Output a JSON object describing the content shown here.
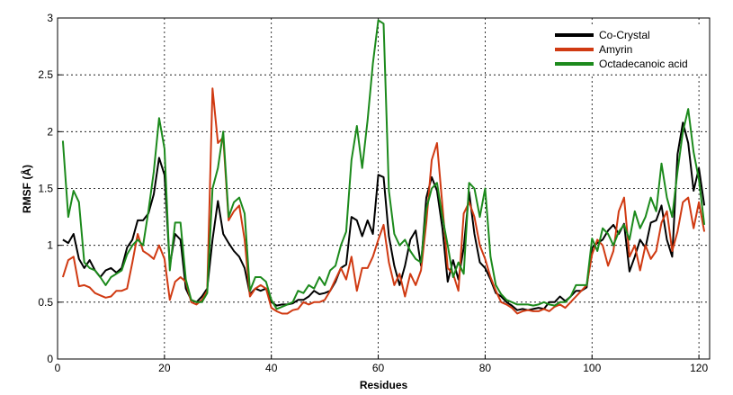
{
  "chart_data": {
    "type": "line",
    "xlabel": "Residues",
    "ylabel": "RMSF (Å)",
    "xlim": [
      0,
      122
    ],
    "ylim": [
      0,
      3
    ],
    "xticks": [
      0,
      20,
      40,
      60,
      80,
      100,
      120
    ],
    "yticks": [
      0,
      0.5,
      1,
      1.5,
      2,
      2.5,
      3
    ],
    "xtick_labels": [
      "0",
      "20",
      "40",
      "60",
      "80",
      "100",
      "120"
    ],
    "ytick_labels": [
      "0",
      "0.5",
      "1",
      "1.5",
      "2",
      "2.5",
      "3"
    ],
    "grid": true,
    "legend_position": "top-right",
    "x": [
      1,
      2,
      3,
      4,
      5,
      6,
      7,
      8,
      9,
      10,
      11,
      12,
      13,
      14,
      15,
      16,
      17,
      18,
      19,
      20,
      21,
      22,
      23,
      24,
      25,
      26,
      27,
      28,
      29,
      30,
      31,
      32,
      33,
      34,
      35,
      36,
      37,
      38,
      39,
      40,
      41,
      42,
      43,
      44,
      45,
      46,
      47,
      48,
      49,
      50,
      51,
      52,
      53,
      54,
      55,
      56,
      57,
      58,
      59,
      60,
      61,
      62,
      63,
      64,
      65,
      66,
      67,
      68,
      69,
      70,
      71,
      72,
      73,
      74,
      75,
      76,
      77,
      78,
      79,
      80,
      81,
      82,
      83,
      84,
      85,
      86,
      87,
      88,
      89,
      90,
      91,
      92,
      93,
      94,
      95,
      96,
      97,
      98,
      99,
      100,
      101,
      102,
      103,
      104,
      105,
      106,
      107,
      108,
      109,
      110,
      111,
      112,
      113,
      114,
      115,
      116,
      117,
      118,
      119,
      120,
      121
    ],
    "series": [
      {
        "name": "Co-Crystal",
        "color": "#000000",
        "values": [
          1.05,
          1.02,
          1.1,
          0.88,
          0.8,
          0.87,
          0.78,
          0.72,
          0.78,
          0.8,
          0.76,
          0.8,
          0.98,
          1.05,
          1.22,
          1.22,
          1.28,
          1.45,
          1.77,
          1.62,
          0.82,
          1.1,
          1.05,
          0.62,
          0.52,
          0.5,
          0.55,
          0.62,
          1.05,
          1.39,
          1.1,
          1.02,
          0.95,
          0.9,
          0.8,
          0.57,
          0.62,
          0.6,
          0.62,
          0.5,
          0.47,
          0.48,
          0.48,
          0.49,
          0.52,
          0.52,
          0.55,
          0.6,
          0.57,
          0.58,
          0.6,
          0.68,
          0.8,
          0.83,
          1.25,
          1.22,
          1.08,
          1.22,
          1.1,
          1.62,
          1.6,
          1.08,
          0.82,
          0.65,
          0.82,
          1.05,
          1.13,
          0.82,
          1.42,
          1.6,
          1.48,
          1.15,
          0.68,
          0.87,
          0.7,
          0.98,
          1.47,
          1.1,
          0.85,
          0.8,
          0.7,
          0.58,
          0.55,
          0.5,
          0.47,
          0.43,
          0.44,
          0.43,
          0.44,
          0.45,
          0.44,
          0.5,
          0.5,
          0.55,
          0.51,
          0.55,
          0.6,
          0.6,
          0.63,
          0.98,
          1.02,
          1.05,
          1.13,
          1.18,
          1.1,
          1.19,
          0.77,
          0.9,
          1.05,
          0.98,
          1.2,
          1.22,
          1.35,
          1.05,
          0.9,
          1.8,
          2.08,
          1.9,
          1.48,
          1.68,
          1.35
        ]
      },
      {
        "name": "Amyrin",
        "color": "#d03a12",
        "values": [
          0.72,
          0.87,
          0.9,
          0.64,
          0.65,
          0.63,
          0.58,
          0.56,
          0.54,
          0.55,
          0.6,
          0.6,
          0.62,
          0.85,
          1.1,
          0.95,
          0.92,
          0.88,
          1.0,
          0.88,
          0.52,
          0.68,
          0.72,
          0.68,
          0.5,
          0.48,
          0.52,
          0.6,
          2.38,
          1.9,
          1.95,
          1.22,
          1.3,
          1.35,
          1.05,
          0.55,
          0.62,
          0.65,
          0.62,
          0.45,
          0.42,
          0.4,
          0.4,
          0.43,
          0.44,
          0.5,
          0.48,
          0.5,
          0.5,
          0.52,
          0.6,
          0.7,
          0.8,
          0.7,
          0.9,
          0.6,
          0.8,
          0.8,
          0.9,
          1.05,
          1.18,
          0.85,
          0.65,
          0.75,
          0.55,
          0.75,
          0.65,
          0.78,
          1.2,
          1.75,
          1.9,
          1.35,
          0.8,
          0.75,
          0.6,
          1.28,
          1.38,
          1.25,
          1.0,
          0.88,
          0.72,
          0.6,
          0.5,
          0.48,
          0.45,
          0.4,
          0.42,
          0.43,
          0.42,
          0.42,
          0.44,
          0.42,
          0.46,
          0.48,
          0.45,
          0.5,
          0.55,
          0.6,
          0.65,
          0.92,
          1.05,
          1.0,
          0.82,
          0.95,
          1.3,
          1.42,
          0.9,
          1.0,
          0.78,
          1.0,
          0.88,
          0.95,
          1.2,
          1.3,
          0.95,
          1.12,
          1.38,
          1.42,
          1.15,
          1.38,
          1.12
        ]
      },
      {
        "name": "Octadecanoic acid",
        "color": "#1c8a1c",
        "values": [
          1.92,
          1.25,
          1.48,
          1.38,
          0.85,
          0.8,
          0.78,
          0.72,
          0.65,
          0.72,
          0.75,
          0.78,
          0.92,
          1.0,
          1.05,
          1.0,
          1.3,
          1.65,
          2.12,
          1.85,
          0.78,
          1.2,
          1.2,
          0.7,
          0.52,
          0.5,
          0.5,
          0.58,
          1.5,
          1.68,
          2.0,
          1.25,
          1.38,
          1.42,
          1.28,
          0.6,
          0.72,
          0.72,
          0.68,
          0.52,
          0.44,
          0.46,
          0.48,
          0.5,
          0.6,
          0.58,
          0.65,
          0.62,
          0.72,
          0.65,
          0.78,
          0.82,
          1.0,
          1.12,
          1.75,
          2.05,
          1.68,
          2.1,
          2.6,
          2.98,
          2.95,
          1.48,
          1.1,
          1.0,
          1.05,
          0.95,
          0.88,
          0.85,
          1.32,
          1.5,
          1.55,
          1.25,
          1.0,
          0.72,
          0.85,
          0.75,
          1.55,
          1.5,
          1.25,
          1.5,
          0.9,
          0.65,
          0.57,
          0.52,
          0.5,
          0.48,
          0.48,
          0.48,
          0.47,
          0.48,
          0.5,
          0.48,
          0.47,
          0.5,
          0.5,
          0.55,
          0.65,
          0.65,
          0.65,
          1.06,
          0.95,
          1.15,
          1.1,
          1.0,
          1.12,
          1.18,
          1.05,
          1.3,
          1.15,
          1.25,
          1.42,
          1.3,
          1.72,
          1.42,
          1.25,
          1.65,
          2.0,
          2.2,
          1.82,
          1.58,
          1.18
        ]
      }
    ]
  }
}
